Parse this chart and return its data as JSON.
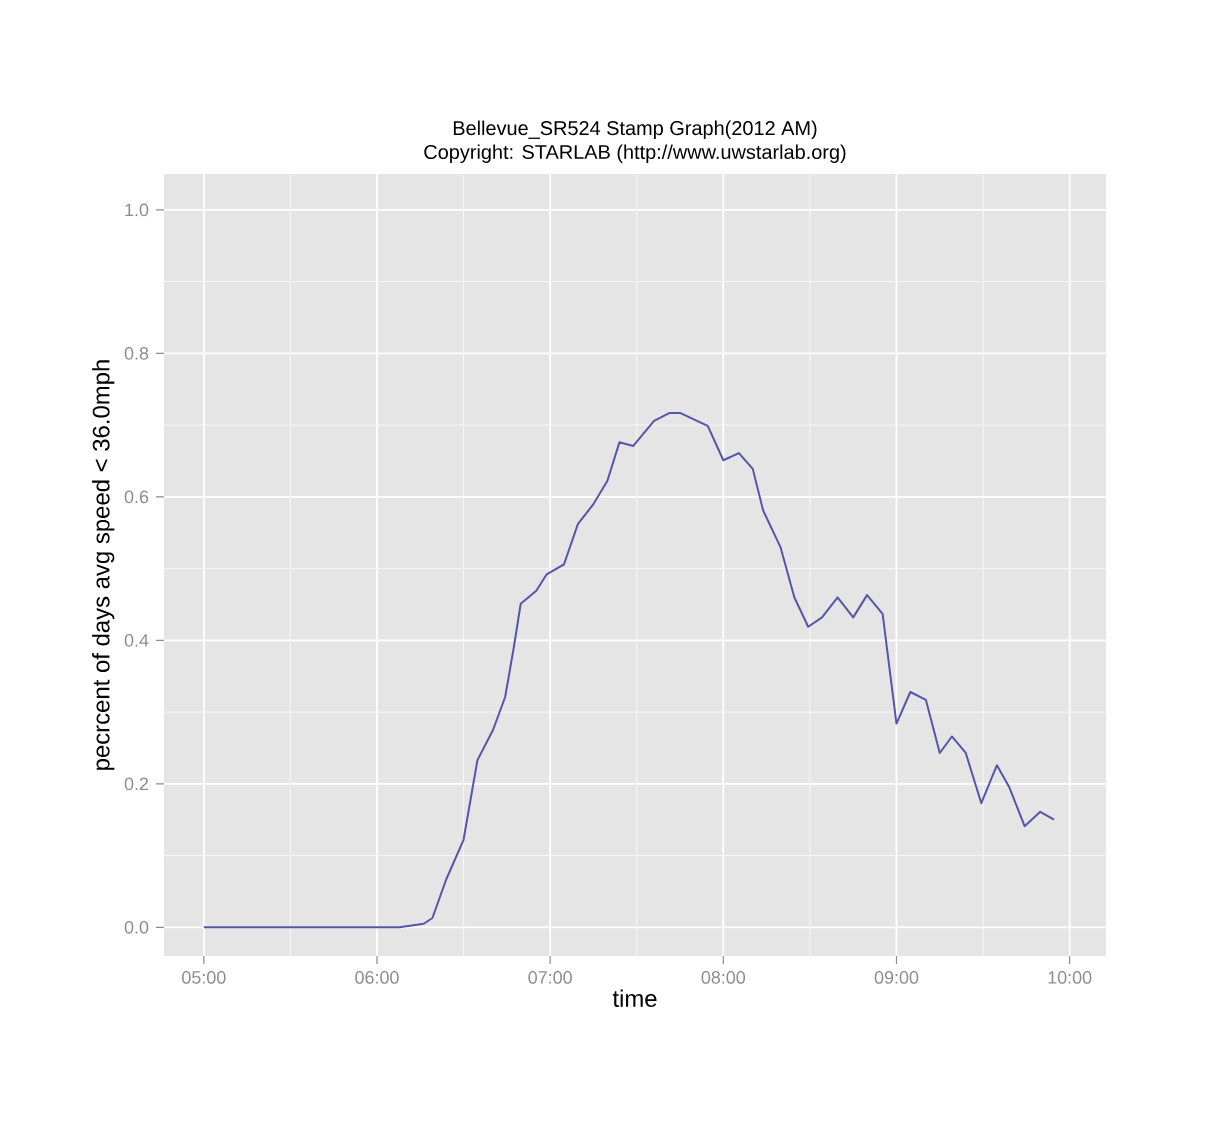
{
  "chart_data": {
    "type": "line",
    "title": "Bellevue_SR524 Stamp Graph(2012 AM)",
    "subtitle": "Copyright: STARLAB (http://www.uwstarlab.org)",
    "xlabel": "time",
    "ylabel": "pecrcent of days avg speed < 36.0mph",
    "x": [
      5.0,
      6.13,
      6.27,
      6.32,
      6.4,
      6.5,
      6.58,
      6.67,
      6.74,
      6.79,
      6.83,
      6.92,
      6.98,
      7.08,
      7.16,
      7.25,
      7.33,
      7.4,
      7.48,
      7.6,
      7.69,
      7.75,
      7.91,
      8.0,
      8.09,
      8.17,
      8.23,
      8.33,
      8.41,
      8.49,
      8.57,
      8.66,
      8.75,
      8.83,
      8.92,
      9.0,
      9.08,
      9.17,
      9.25,
      9.32,
      9.4,
      9.49,
      9.58,
      9.65,
      9.74,
      9.83,
      9.91
    ],
    "series": [
      {
        "color": "#5555aa",
        "values": [
          0.0,
          0.0,
          0.005,
          0.013,
          0.067,
          0.122,
          0.233,
          0.275,
          0.321,
          0.39,
          0.451,
          0.469,
          0.492,
          0.506,
          0.562,
          0.59,
          0.622,
          0.676,
          0.671,
          0.706,
          0.717,
          0.717,
          0.699,
          0.651,
          0.661,
          0.639,
          0.581,
          0.53,
          0.46,
          0.419,
          0.432,
          0.46,
          0.432,
          0.463,
          0.437,
          0.284,
          0.328,
          0.317,
          0.243,
          0.266,
          0.243,
          0.173,
          0.226,
          0.196,
          0.141,
          0.161,
          0.15
        ]
      }
    ],
    "xlim": [
      4.77,
      10.21
    ],
    "ylim": [
      -0.04,
      1.05
    ],
    "xticks": [
      {
        "value": 5,
        "label": "05:00"
      },
      {
        "value": 6,
        "label": "06:00"
      },
      {
        "value": 7,
        "label": "07:00"
      },
      {
        "value": 8,
        "label": "08:00"
      },
      {
        "value": 9,
        "label": "09:00"
      },
      {
        "value": 10,
        "label": "10:00"
      }
    ],
    "yticks": [
      {
        "value": 0,
        "label": "0.0"
      },
      {
        "value": 0.2,
        "label": "0.2"
      },
      {
        "value": 0.4,
        "label": "0.4"
      },
      {
        "value": 0.6,
        "label": "0.6"
      },
      {
        "value": 0.8,
        "label": "0.8"
      },
      {
        "value": 1.0,
        "label": "1.0"
      }
    ],
    "grid": true,
    "legend": false,
    "marker": "none",
    "line_style": "solid"
  }
}
